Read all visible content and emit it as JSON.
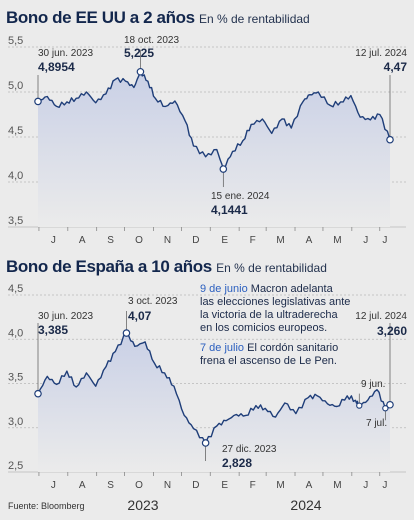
{
  "chart_data": [
    {
      "type": "area",
      "title": "Bono de EE UU a 2 años",
      "subtitle": "En % de rentabilidad",
      "ylim": [
        3.5,
        5.5
      ],
      "yticks": [
        "5,5",
        "5,0",
        "4,5",
        "4,0",
        "3,5"
      ],
      "ytick_values": [
        5.5,
        5.0,
        4.5,
        4.0,
        3.5
      ],
      "months": [
        "J",
        "A",
        "S",
        "O",
        "N",
        "D",
        "E",
        "F",
        "M",
        "A",
        "M",
        "J",
        "J"
      ],
      "series": [
        {
          "x": [
            "2023-06-30",
            "2023-07-10",
            "2023-07-20",
            "2023-07-31",
            "2023-08-10",
            "2023-08-21",
            "2023-08-31",
            "2023-09-11",
            "2023-09-21",
            "2023-10-02",
            "2023-10-11",
            "2023-10-18",
            "2023-10-26",
            "2023-11-03",
            "2023-11-14",
            "2023-11-24",
            "2023-12-05",
            "2023-12-14",
            "2023-12-27",
            "2024-01-08",
            "2024-01-15",
            "2024-01-25",
            "2024-02-05",
            "2024-02-14",
            "2024-02-26",
            "2024-03-07",
            "2024-03-18",
            "2024-03-28",
            "2024-04-10",
            "2024-04-17",
            "2024-04-26",
            "2024-05-09",
            "2024-05-20",
            "2024-05-31",
            "2024-06-10",
            "2024-06-21",
            "2024-07-01",
            "2024-07-12"
          ],
          "values": [
            4.8954,
            4.95,
            4.84,
            4.89,
            4.93,
            5.0,
            4.88,
            4.98,
            5.14,
            5.12,
            5.05,
            5.225,
            5.12,
            4.93,
            4.84,
            4.9,
            4.68,
            4.4,
            4.28,
            4.36,
            4.1441,
            4.34,
            4.46,
            4.64,
            4.7,
            4.54,
            4.7,
            4.6,
            4.9,
            4.97,
            5.0,
            4.85,
            4.89,
            4.96,
            4.72,
            4.69,
            4.75,
            4.47
          ]
        }
      ],
      "annotations": [
        {
          "date": "30 jun. 2023",
          "value": "4,8954"
        },
        {
          "date": "18 oct. 2023",
          "value": "5,225"
        },
        {
          "date": "15 ene. 2024",
          "value": "4,1441"
        },
        {
          "date": "12 jul. 2024",
          "value": "4,47"
        }
      ]
    },
    {
      "type": "area",
      "title": "Bono de España a 10 años",
      "subtitle": "En % de rentabilidad",
      "ylim": [
        2.5,
        4.5
      ],
      "yticks": [
        "4,5",
        "4,0",
        "3,5",
        "3,0",
        "2,5"
      ],
      "ytick_values": [
        4.5,
        4.0,
        3.5,
        3.0,
        2.5
      ],
      "months": [
        "J",
        "A",
        "S",
        "O",
        "N",
        "D",
        "E",
        "F",
        "M",
        "A",
        "M",
        "J",
        "J"
      ],
      "years": [
        "2023",
        "2024"
      ],
      "series": [
        {
          "x": [
            "2023-06-30",
            "2023-07-10",
            "2023-07-20",
            "2023-07-31",
            "2023-08-10",
            "2023-08-21",
            "2023-08-31",
            "2023-09-11",
            "2023-09-21",
            "2023-10-03",
            "2023-10-12",
            "2023-10-23",
            "2023-11-02",
            "2023-11-13",
            "2023-11-23",
            "2023-12-04",
            "2023-12-14",
            "2023-12-27",
            "2024-01-08",
            "2024-01-18",
            "2024-01-29",
            "2024-02-08",
            "2024-02-19",
            "2024-02-29",
            "2024-03-11",
            "2024-03-21",
            "2024-04-02",
            "2024-04-15",
            "2024-04-25",
            "2024-05-06",
            "2024-05-16",
            "2024-05-27",
            "2024-06-05",
            "2024-06-09",
            "2024-06-18",
            "2024-06-28",
            "2024-07-07",
            "2024-07-12"
          ],
          "values": [
            3.385,
            3.58,
            3.49,
            3.64,
            3.46,
            3.62,
            3.47,
            3.69,
            3.86,
            4.07,
            3.92,
            3.97,
            3.73,
            3.62,
            3.47,
            3.14,
            2.99,
            2.828,
            3.02,
            3.08,
            3.15,
            3.14,
            3.25,
            3.22,
            3.12,
            3.28,
            3.16,
            3.34,
            3.36,
            3.27,
            3.24,
            3.36,
            3.31,
            3.25,
            3.31,
            3.43,
            3.22,
            3.26
          ]
        }
      ],
      "annotations": [
        {
          "date": "30 jun. 2023",
          "value": "3,385"
        },
        {
          "date": "3 oct. 2023",
          "value": "4,07"
        },
        {
          "date": "27 dic. 2023",
          "value": "2,828"
        },
        {
          "date": "12 jul. 2024",
          "value": "3,260"
        },
        {
          "date": "9 jun."
        },
        {
          "date": "7 jul."
        }
      ],
      "notes": [
        {
          "date": "9 de junio",
          "lines": [
            "Macron adelanta",
            "las elecciones legislativas ante",
            "la victoria de la ultraderecha",
            "en los comicios europeos."
          ]
        },
        {
          "date": "7 de julio",
          "lines": [
            "El cordón sanitario",
            "frena el ascenso de Le Pen."
          ]
        }
      ]
    }
  ],
  "source": "Fuente: Bloomberg",
  "colors": {
    "line": "#1f3e79",
    "fill_top": "#c9d0e6",
    "fill_bottom": "#ebebeb"
  }
}
